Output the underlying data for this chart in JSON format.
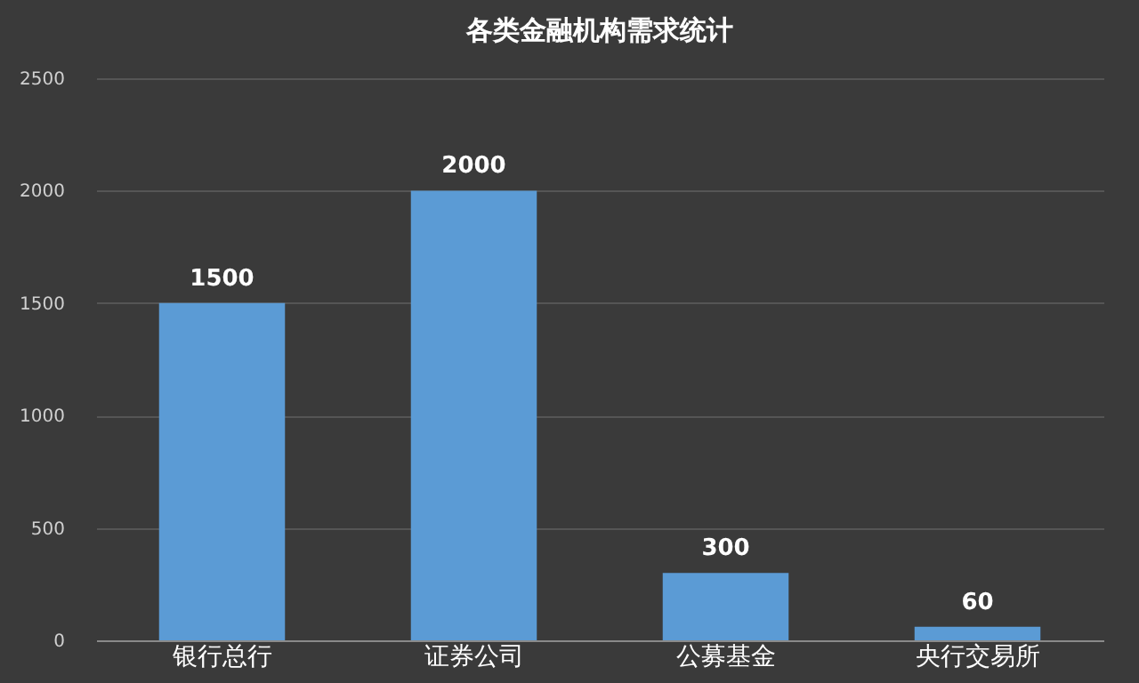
{
  "chart_data": {
    "type": "bar",
    "title": "各类金融机构需求统计",
    "categories": [
      "银行总行",
      "证券公司",
      "公募基金",
      "央行交易所"
    ],
    "values": [
      1500,
      2000,
      300,
      60
    ],
    "color": "#5b9bd5",
    "ylim": [
      0,
      2500
    ],
    "yticks": [
      0,
      500,
      1000,
      1500,
      2000,
      2500
    ],
    "grid": "y",
    "data_labels": true
  }
}
